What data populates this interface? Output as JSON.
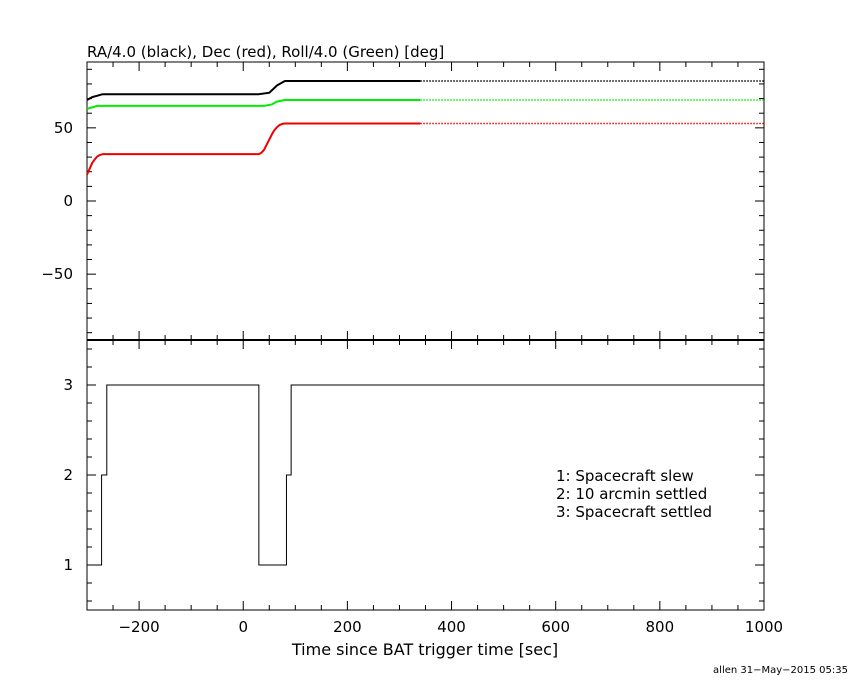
{
  "chart_data": [
    {
      "type": "line",
      "title": "RA/4.0 (black), Dec (red), Roll/4.0 (Green) [deg]",
      "ylim": [
        -95,
        95
      ],
      "xlim": [
        -300,
        1000
      ],
      "yticks": [
        -50,
        0,
        50
      ],
      "yticklabels": [
        "−50",
        "0",
        "50"
      ],
      "series": [
        {
          "color": "#000000",
          "x": [
            -300,
            -290,
            -280,
            -270,
            -260,
            30,
            50,
            65,
            80,
            340,
            1000
          ],
          "y": [
            69,
            71,
            72,
            73,
            73,
            73,
            74,
            79,
            82,
            82,
            82
          ],
          "dotted_after": 340
        },
        {
          "color": "#00ee00",
          "x": [
            -300,
            -290,
            -280,
            -270,
            -260,
            40,
            55,
            65,
            80,
            340,
            1000
          ],
          "y": [
            63,
            64,
            65,
            65,
            65,
            65,
            66,
            68,
            69,
            69,
            69
          ],
          "dotted_after": 340
        },
        {
          "color": "#ee0000",
          "x": [
            -300,
            -295,
            -290,
            -285,
            -280,
            -275,
            -270,
            -265,
            -260,
            30,
            35,
            40,
            45,
            50,
            55,
            60,
            65,
            70,
            75,
            80,
            90,
            340,
            1000
          ],
          "y": [
            18,
            22,
            26,
            28.5,
            30.5,
            31.5,
            32,
            32,
            32,
            32,
            33,
            35,
            38.5,
            42,
            45.5,
            48.5,
            50.5,
            52,
            52.7,
            53,
            53,
            53,
            53
          ],
          "dotted_after": 340
        }
      ]
    },
    {
      "type": "line",
      "ylim": [
        0.5,
        3.5
      ],
      "xlim": [
        -300,
        1000
      ],
      "xlabel": "Time since BAT trigger time [sec]",
      "yticks": [
        1,
        2,
        3
      ],
      "yticklabels": [
        "1",
        "2",
        "3"
      ],
      "xticks": [
        -200,
        0,
        200,
        400,
        600,
        800,
        1000
      ],
      "xticklabels": [
        "−200",
        "0",
        "200",
        "400",
        "600",
        "800",
        "1000"
      ],
      "series": [
        {
          "color": "#000000",
          "step": true,
          "x": [
            -300,
            -272,
            -262,
            30,
            83,
            92,
            1000
          ],
          "y": [
            1,
            2,
            3,
            1,
            2,
            3,
            3
          ]
        }
      ],
      "legend_position": "right",
      "annotations": [
        "1: Spacecraft slew",
        "2: 10 arcmin settled",
        "3: Spacecraft settled"
      ]
    }
  ],
  "footer": {
    "credit": "allen 31−May−2015 05:35"
  }
}
